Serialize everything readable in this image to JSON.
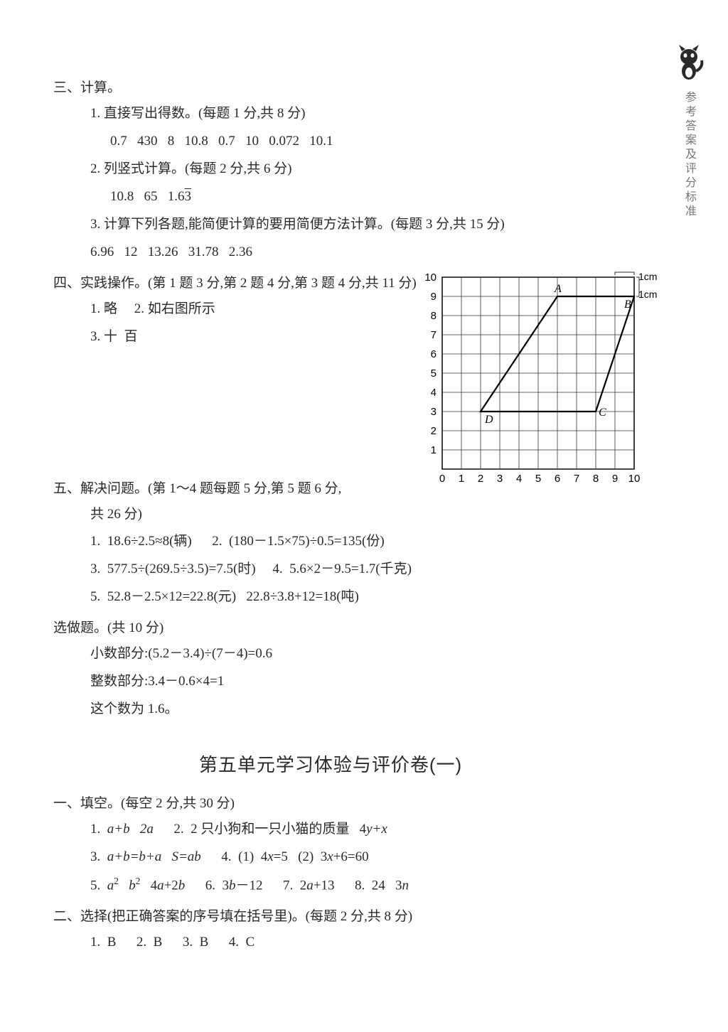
{
  "sidebar": {
    "vertical_label": "参考答案及评分标准"
  },
  "sec3": {
    "head": "三、计算。",
    "q1": "1. 直接写出得数。(每题 1 分,共 8 分)",
    "q1_ans": "0.7   430   8   10.8   0.7   10   0.072   10.1",
    "q2": "2. 列竖式计算。(每题 2 分,共 6 分)",
    "q2_ans_a": "10.8   65   1.6",
    "q2_ans_b": "3",
    "q3": "3. 计算下列各题,能简便计算的要用简便方法计算。(每题 3 分,共 15 分)",
    "q3_ans": "6.96   12   13.26   31.78   2.36"
  },
  "sec4": {
    "head": "四、实践操作。(第 1 题 3 分,第 2 题 4 分,第 3 题 4 分,共 11 分)",
    "line1": "1. 略     2. 如右图所示",
    "line2": "3. 十  百"
  },
  "chart": {
    "x_ticks": [
      "0",
      "1",
      "2",
      "3",
      "4",
      "5",
      "6",
      "7",
      "8",
      "9",
      "10"
    ],
    "y_ticks": [
      "1",
      "2",
      "3",
      "4",
      "5",
      "6",
      "7",
      "8",
      "9",
      "10"
    ],
    "cell": 27,
    "unit_x": "1cm",
    "unit_y": "1cm",
    "grid_color": "#333333",
    "bg": "#ffffff",
    "points": {
      "A": {
        "x": 6,
        "y": 9,
        "label": "A"
      },
      "B": {
        "x": 10,
        "y": 9,
        "label": "B"
      },
      "C": {
        "x": 8,
        "y": 3,
        "label": "C"
      },
      "D": {
        "x": 2,
        "y": 3,
        "label": "D"
      }
    }
  },
  "sec5": {
    "head": "五、解决问题。(第 1～4 题每题 5 分,第 5 题 6 分,",
    "head2": "共 26 分)",
    "q1": "1.  18.6÷2.5≈8(辆)      2.  (180－1.5×75)÷0.5=135(份)",
    "q3": "3.  577.5÷(269.5÷3.5)=7.5(时)     4.  5.6×2－9.5=1.7(千克)",
    "q5": "5.  52.8－2.5×12=22.8(元)   22.8÷3.8+12=18(吨)"
  },
  "optional": {
    "head": "选做题。(共 10 分)",
    "l1": "小数部分:(5.2－3.4)÷(7－4)=0.6",
    "l2": "整数部分:3.4－0.6×4=1",
    "l3": "这个数为 1.6。"
  },
  "unit5_title": "第五单元学习体验与评价卷(一)",
  "sec_a": {
    "head": "一、填空。(每空 2 分,共 30 分)",
    "l1a": "1.  ",
    "l1b": "a+b   2a",
    "l1c": "      2.  2 只小狗和一只小猫的质量   4",
    "l1d": "y+x",
    "l3a": "3.  ",
    "l3b": "a+b=b+a   S=ab",
    "l3c": "      4.  (1)  4",
    "l3d": "x",
    "l3e": "=5   (2)  3",
    "l3f": "x",
    "l3g": "+6=60",
    "l5a": "5.  ",
    "l5b": "a",
    "l5c": "   ",
    "l5d": "b",
    "l5e": "   4",
    "l5f": "a",
    "l5g": "+2",
    "l5h": "b",
    "l5i": "      6.  3",
    "l5j": "b",
    "l5k": "－12      7.  2",
    "l5l": "a",
    "l5m": "+13      8.  24   3",
    "l5n": "n"
  },
  "sec_b": {
    "head": "二、选择(把正确答案的序号填在括号里)。(每题 2 分,共 8 分)",
    "ans": "1.  B      2.  B      3.  B      4.  C"
  }
}
